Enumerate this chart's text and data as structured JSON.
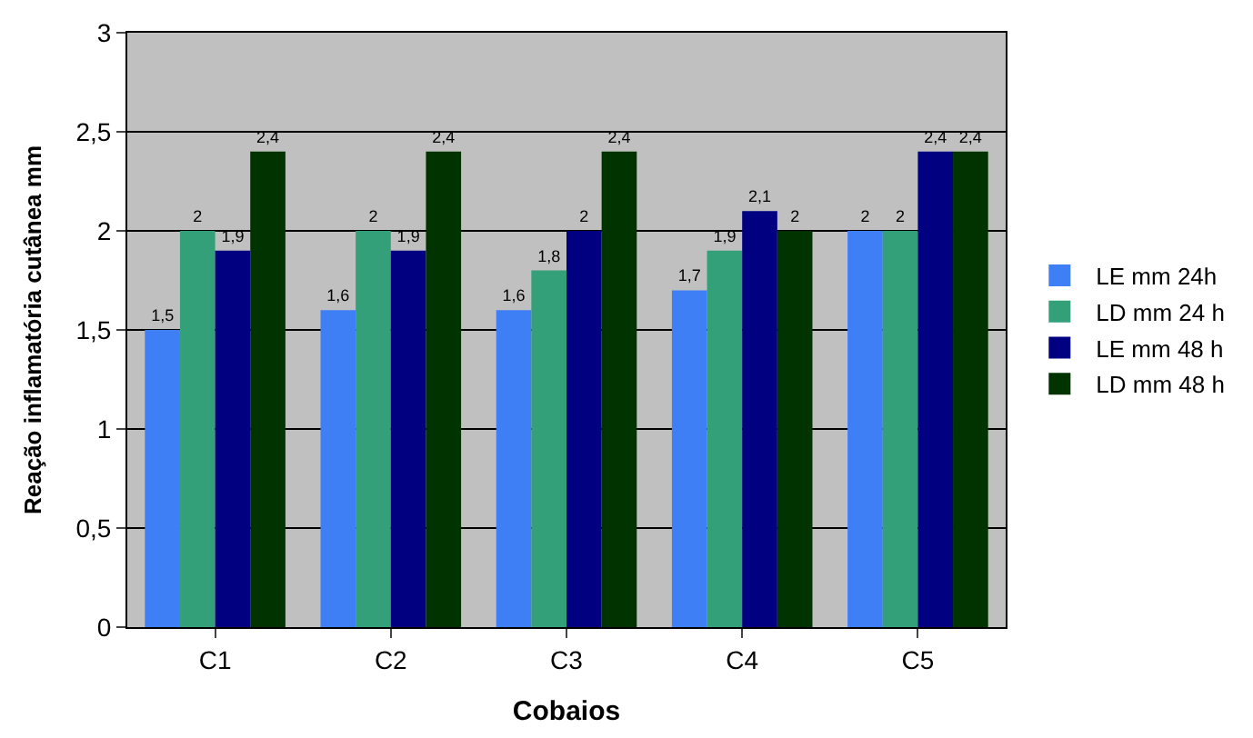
{
  "chart_data": {
    "type": "bar",
    "xlabel": "Cobaios",
    "ylabel": "Reação inflamatória cutânea mm",
    "categories": [
      "C1",
      "C2",
      "C3",
      "C4",
      "C5"
    ],
    "series": [
      {
        "name": "LE mm 24h",
        "color": "#3f7ff5",
        "values": [
          1.5,
          1.6,
          1.6,
          1.7,
          2
        ],
        "value_labels": [
          "1,5",
          "1,6",
          "1,6",
          "1,7",
          "2"
        ]
      },
      {
        "name": "LD mm 24 h",
        "color": "#33a07a",
        "values": [
          2,
          2,
          1.8,
          1.9,
          2
        ],
        "value_labels": [
          "2",
          "2",
          "1,8",
          "1,9",
          "2"
        ]
      },
      {
        "name": "LE mm 48 h",
        "color": "#000080",
        "values": [
          1.9,
          1.9,
          2,
          2.1,
          2.4
        ],
        "value_labels": [
          "1,9",
          "1,9",
          "2",
          "2,1",
          "2,4"
        ]
      },
      {
        "name": "LD mm 48 h",
        "color": "#003300",
        "values": [
          2.4,
          2.4,
          2.4,
          2,
          2.4
        ],
        "value_labels": [
          "2,4",
          "2,4",
          "2,4",
          "2",
          "2,4"
        ]
      }
    ],
    "ylim": [
      0,
      3
    ],
    "yticks": [
      0,
      {
        "value": 0.5,
        "label": "0,5"
      },
      1,
      {
        "value": 1.5,
        "label": "1,5"
      },
      2,
      {
        "value": 2.5,
        "label": "2,5"
      },
      3
    ],
    "grid": "y",
    "legend": "right"
  }
}
